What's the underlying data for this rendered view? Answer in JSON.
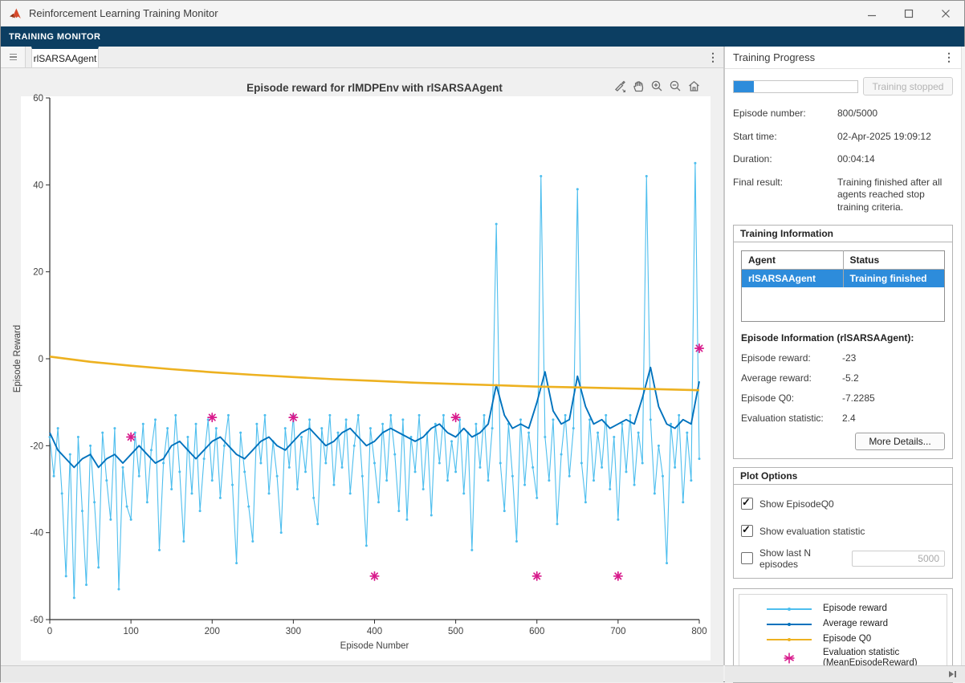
{
  "window": {
    "title": "Reinforcement Learning Training Monitor",
    "controls": [
      {
        "name": "minimize"
      },
      {
        "name": "maximize"
      },
      {
        "name": "close"
      }
    ]
  },
  "toolstrip": {
    "tab_label": "TRAINING MONITOR"
  },
  "doc_tabs": {
    "active_tab": "rlSARSAAgent",
    "menu_icon": "⋮"
  },
  "figure": {
    "toolbar_icons": [
      "brush-icon",
      "pan-icon",
      "zoom-in-icon",
      "zoom-out-icon",
      "home-icon"
    ]
  },
  "chart_data": {
    "type": "line",
    "title": "Episode reward for rlMDPEnv with rlSARSAAgent",
    "xlabel": "Episode Number",
    "ylabel": "Episode Reward",
    "xlim": [
      0,
      800
    ],
    "ylim": [
      -60,
      60
    ],
    "xticks": [
      0,
      100,
      200,
      300,
      400,
      500,
      600,
      700,
      800
    ],
    "yticks": [
      -60,
      -40,
      -20,
      0,
      20,
      40,
      60
    ],
    "grid": false,
    "legend_position": "right-panel",
    "series": [
      {
        "name": "Episode reward",
        "color": "#4DBEEE",
        "marker": "dot",
        "width": 1.1,
        "step": 5,
        "values": [
          -18,
          -27,
          -16,
          -31,
          -50,
          -22,
          -55,
          -18,
          -35,
          -52,
          -20,
          -33,
          -48,
          -17,
          -28,
          -37,
          -16,
          -53,
          -25,
          -34,
          -37,
          -17,
          -27,
          -15,
          -33,
          -21,
          -14,
          -44,
          -24,
          -16,
          -30,
          -13,
          -26,
          -42,
          -18,
          -31,
          -15,
          -35,
          -23,
          -14,
          -28,
          -16,
          -32,
          -20,
          -13,
          -29,
          -47,
          -17,
          -26,
          -34,
          -42,
          -15,
          -24,
          -13,
          -31,
          -19,
          -27,
          -40,
          -16,
          -25,
          -13,
          -30,
          -18,
          -26,
          -14,
          -32,
          -38,
          -16,
          -24,
          -13,
          -29,
          -17,
          -25,
          -14,
          -31,
          -20,
          -13,
          -27,
          -43,
          -16,
          -24,
          -33,
          -15,
          -28,
          -13,
          -22,
          -35,
          -14,
          -37,
          -18,
          -26,
          -13,
          -30,
          -17,
          -36,
          -15,
          -24,
          -13,
          -28,
          -19,
          -26,
          -14,
          -31,
          -17,
          -44,
          -15,
          -25,
          -13,
          -28,
          -16,
          31,
          -24,
          -35,
          -15,
          -27,
          -42,
          -14,
          -29,
          -17,
          -25,
          -32,
          42,
          -18,
          -28,
          -14,
          -38,
          -22,
          -13,
          -27,
          -16,
          39,
          -24,
          -33,
          -14,
          -28,
          -17,
          -25,
          -13,
          -30,
          -18,
          -37,
          -15,
          -26,
          -13,
          -29,
          -17,
          -24,
          42,
          -14,
          -31,
          -20,
          -27,
          -47,
          -15,
          -25,
          -13,
          -33,
          -17,
          -28,
          45,
          -23
        ]
      },
      {
        "name": "Average reward",
        "color": "#0072BD",
        "marker": "none",
        "width": 1.9,
        "step": 10,
        "values": [
          -17,
          -21,
          -23,
          -25,
          -23,
          -22,
          -25,
          -23,
          -22,
          -24,
          -22,
          -20,
          -22,
          -24,
          -23,
          -20,
          -19,
          -21,
          -23,
          -21,
          -19,
          -18,
          -20,
          -22,
          -23,
          -21,
          -19,
          -18,
          -20,
          -21,
          -19,
          -17,
          -16,
          -18,
          -20,
          -19,
          -17,
          -16,
          -18,
          -20,
          -19,
          -17,
          -16,
          -17,
          -18,
          -19,
          -18,
          -16,
          -15,
          -17,
          -18,
          -16,
          -18,
          -17,
          -15,
          -6,
          -13,
          -16,
          -15,
          -16,
          -10,
          -3,
          -12,
          -15,
          -14,
          -4,
          -11,
          -15,
          -14,
          -16,
          -15,
          -14,
          -15,
          -9,
          -2,
          -11,
          -15,
          -16,
          -14,
          -15,
          -5.2
        ]
      },
      {
        "name": "Episode Q0",
        "color": "#EDB120",
        "marker": "none",
        "width": 2.6,
        "step": 50,
        "values": [
          0.5,
          -0.7,
          -1.6,
          -2.4,
          -3.1,
          -3.7,
          -4.2,
          -4.7,
          -5.1,
          -5.5,
          -5.8,
          -6.1,
          -6.4,
          -6.6,
          -6.8,
          -7.0,
          -7.2285
        ]
      },
      {
        "name": "Evaluation statistic (MeanEpisodeReward)",
        "color": "#D81B8C",
        "marker": "asterisk",
        "x": [
          100,
          200,
          300,
          400,
          500,
          600,
          700,
          800
        ],
        "values": [
          -18,
          -13.5,
          -13.5,
          -50,
          -13.5,
          -50,
          -50,
          2.4
        ]
      }
    ]
  },
  "right_panel": {
    "title": "Training Progress",
    "menu_icon": "⋮",
    "progress": {
      "percent": 16,
      "stop_label": "Training stopped"
    },
    "rows": [
      {
        "label": "Episode number:",
        "value": "800/5000"
      },
      {
        "label": "Start time:",
        "value": "02-Apr-2025 19:09:12"
      },
      {
        "label": "Duration:",
        "value": "00:04:14"
      },
      {
        "label": "Final result:",
        "value": "Training finished after all agents reached stop training criteria."
      }
    ],
    "training_information": {
      "title": "Training Information",
      "table": {
        "headers": [
          "Agent",
          "Status"
        ],
        "rows": [
          {
            "agent": "rlSARSAAgent",
            "status": "Training finished",
            "selected": true
          }
        ]
      },
      "episode_info_title": "Episode Information (rlSARSAAgent):",
      "stats": [
        {
          "label": "Episode reward:",
          "value": "-23"
        },
        {
          "label": "Average reward:",
          "value": "-5.2"
        },
        {
          "label": "Episode Q0:",
          "value": "-7.2285"
        },
        {
          "label": "Evaluation statistic:",
          "value": "2.4"
        }
      ],
      "more_details_label": "More Details..."
    },
    "plot_options": {
      "title": "Plot Options",
      "checkboxes": [
        {
          "label": "Show EpisodeQ0",
          "checked": true
        },
        {
          "label": "Show evaluation statistic",
          "checked": true
        },
        {
          "label": "Show last N episodes",
          "checked": false
        }
      ],
      "last_n_value": "5000"
    },
    "legend": {
      "items": [
        {
          "label": "Episode reward",
          "color": "#4DBEEE",
          "marker": "line-dot"
        },
        {
          "label": "Average reward",
          "color": "#0072BD",
          "marker": "line-dot"
        },
        {
          "label": "Episode Q0",
          "color": "#EDB120",
          "marker": "line-dot"
        },
        {
          "label": "Evaluation statistic",
          "label2": "(MeanEpisodeReward)",
          "color": "#D81B8C",
          "marker": "asterisk"
        }
      ]
    }
  },
  "colors": {
    "toolstrip": "#0c3e62",
    "accent_blue": "#2d8cdb",
    "episode_reward": "#4DBEEE",
    "average_reward": "#0072BD",
    "episode_q0": "#EDB120",
    "evaluation": "#D81B8C"
  }
}
